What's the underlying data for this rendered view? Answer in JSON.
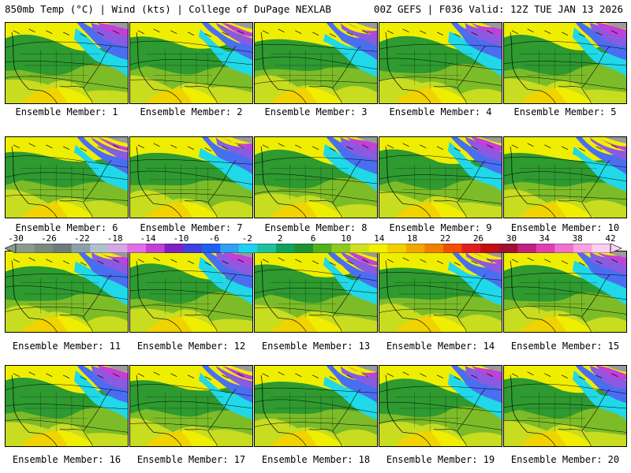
{
  "header": {
    "left": "850mb Temp (°C) | Wind (kts) | College of DuPage NEXLAB",
    "right": "00Z GEFS | F036 Valid: 12Z TUE JAN 13 2026"
  },
  "panels": [
    {
      "label": "Ensemble Member: 1"
    },
    {
      "label": "Ensemble Member: 2"
    },
    {
      "label": "Ensemble Member: 3"
    },
    {
      "label": "Ensemble Member: 4"
    },
    {
      "label": "Ensemble Member: 5"
    },
    {
      "label": "Ensemble Member: 6"
    },
    {
      "label": "Ensemble Member: 7"
    },
    {
      "label": "Ensemble Member: 8"
    },
    {
      "label": "Ensemble Member: 9"
    },
    {
      "label": "Ensemble Member: 10"
    },
    {
      "label": "Ensemble Member: 11"
    },
    {
      "label": "Ensemble Member: 12"
    },
    {
      "label": "Ensemble Member: 13"
    },
    {
      "label": "Ensemble Member: 14"
    },
    {
      "label": "Ensemble Member: 15"
    },
    {
      "label": "Ensemble Member: 16"
    },
    {
      "label": "Ensemble Member: 17"
    },
    {
      "label": "Ensemble Member: 18"
    },
    {
      "label": "Ensemble Member: 19"
    },
    {
      "label": "Ensemble Member: 20"
    }
  ],
  "colorbar": {
    "labels": [
      "-30",
      "-26",
      "-22",
      "-18",
      "-14",
      "-10",
      "-6",
      "-2",
      "2",
      "6",
      "10",
      "14",
      "18",
      "22",
      "26",
      "30",
      "34",
      "38",
      "42"
    ],
    "colors": [
      "#8c9a8c",
      "#7a8a7a",
      "#6d7b7d",
      "#8da0a8",
      "#b0c0cc",
      "#d8a6e6",
      "#e070e8",
      "#c040d8",
      "#8020c0",
      "#4040e0",
      "#2060f0",
      "#30a0f0",
      "#20d0f0",
      "#20c0a0",
      "#10a060",
      "#209030",
      "#50b020",
      "#90c820",
      "#d0e020",
      "#f0f000",
      "#f0d000",
      "#f0a800",
      "#f08000",
      "#f05000",
      "#e02020",
      "#c01010",
      "#a01030",
      "#c02080",
      "#e040b0",
      "#f070d0",
      "#f8a0e0",
      "#f8d0f0"
    ],
    "colors_label_note": ""
  },
  "map_colors": {
    "cold_gray": "#9a9a9a",
    "magenta": "#c040d8",
    "purple": "#8a5ae0",
    "blue": "#4a6ef0",
    "cyan": "#20d8e8",
    "teal": "#20b890",
    "green": "#2e9a30",
    "lightgreen": "#7cbc28",
    "yellowgreen": "#c8dc20",
    "yellow": "#f0ee00",
    "gold": "#f0c800"
  }
}
